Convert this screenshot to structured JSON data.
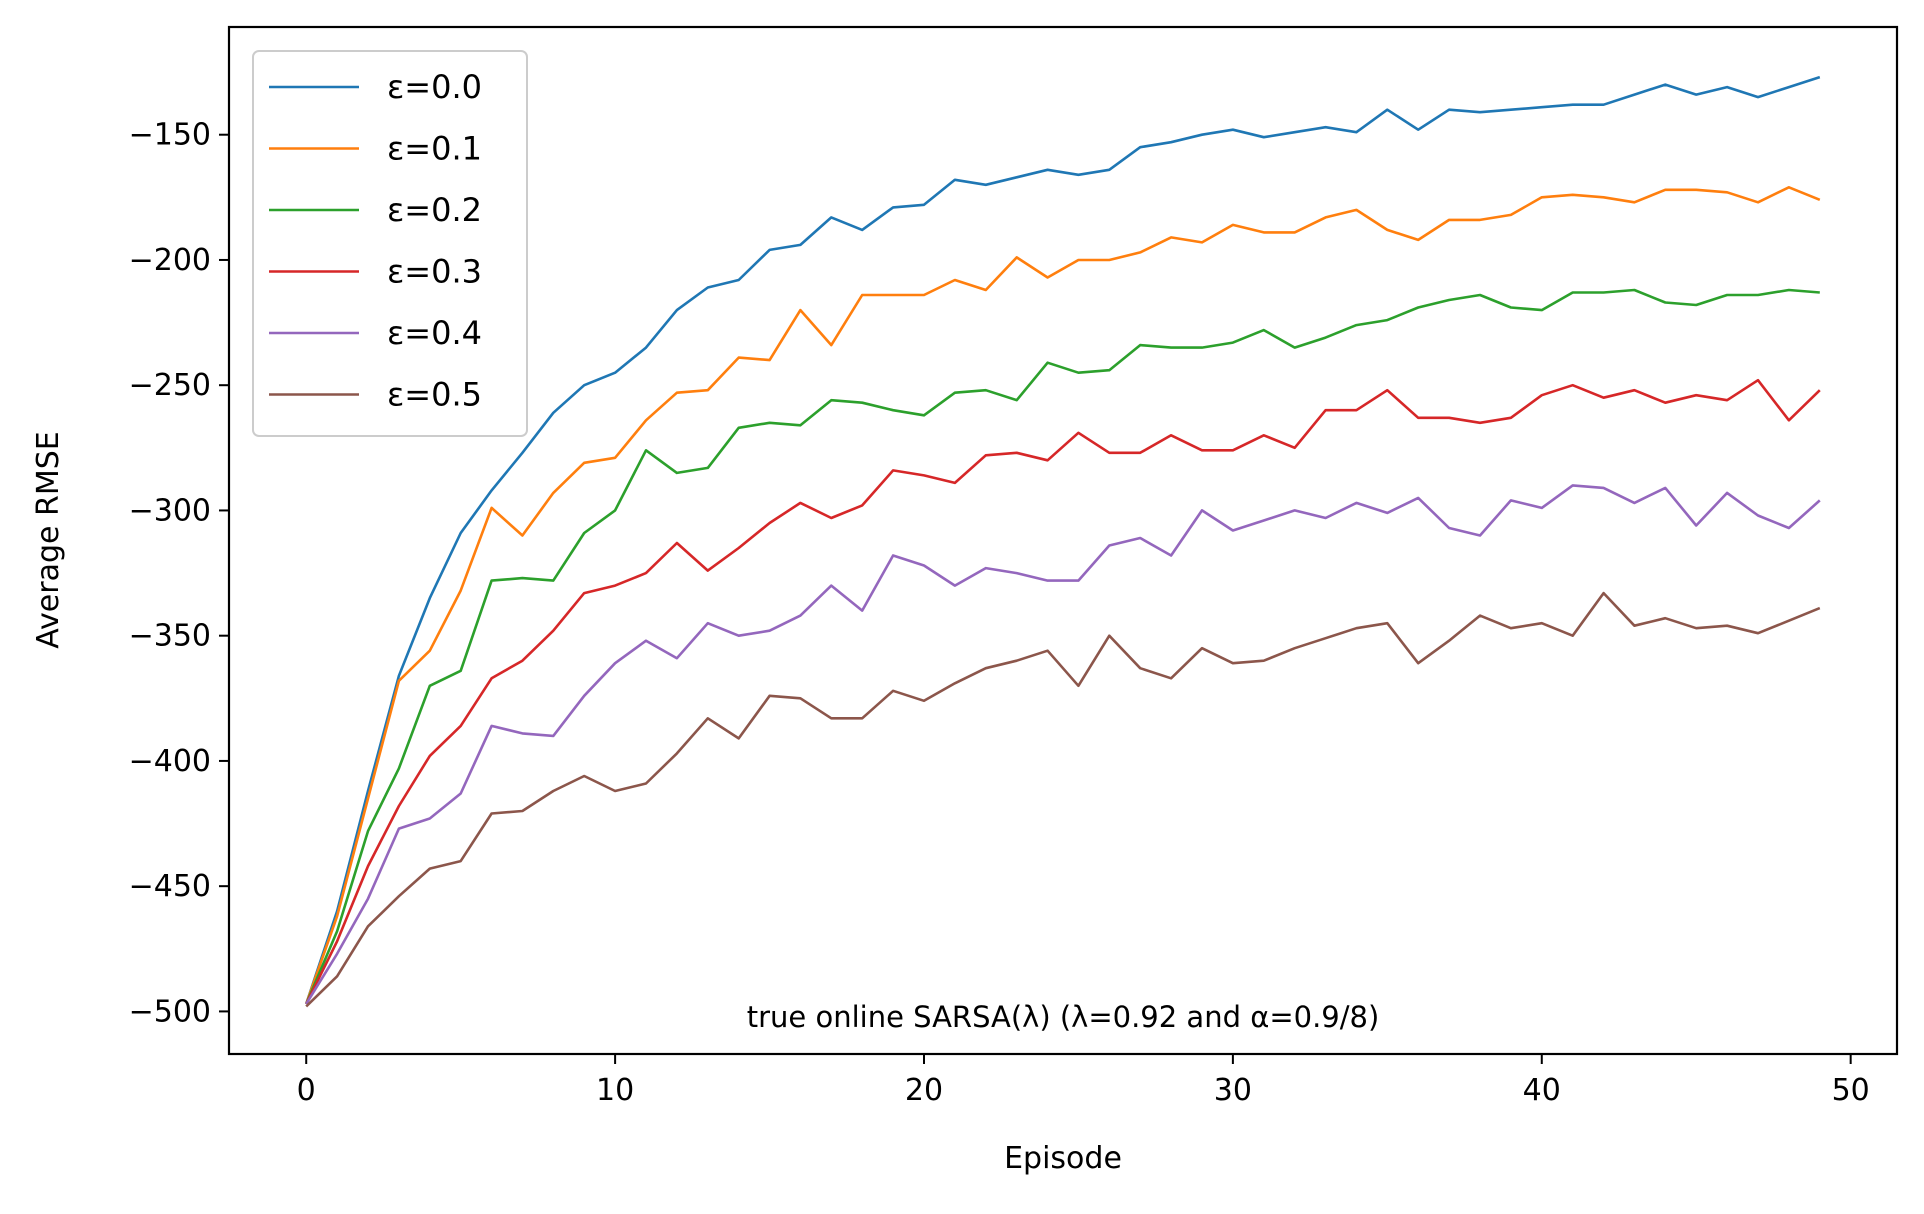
{
  "chart_data": {
    "type": "line",
    "title": "",
    "xlabel": "Episode",
    "ylabel": "Average RMSE",
    "annotation": "true online SARSA(λ) (λ=0.92 and α=0.9/8)",
    "xlim": [
      -2.5,
      51.5
    ],
    "ylim": [
      -517,
      -107
    ],
    "xticks": [
      0,
      10,
      20,
      30,
      40,
      50
    ],
    "xtick_labels": [
      "0",
      "10",
      "20",
      "30",
      "40",
      "50"
    ],
    "yticks": [
      -150,
      -200,
      -250,
      -300,
      -350,
      -400,
      -450,
      -500
    ],
    "ytick_labels": [
      "−150",
      "−200",
      "−250",
      "−300",
      "−350",
      "−400",
      "−450",
      "−500"
    ],
    "grid": false,
    "legend_position": "upper left",
    "x": [
      0,
      1,
      2,
      3,
      4,
      5,
      6,
      7,
      8,
      9,
      10,
      11,
      12,
      13,
      14,
      15,
      16,
      17,
      18,
      19,
      20,
      21,
      22,
      23,
      24,
      25,
      26,
      27,
      28,
      29,
      30,
      31,
      32,
      33,
      34,
      35,
      36,
      37,
      38,
      39,
      40,
      41,
      42,
      43,
      44,
      45,
      46,
      47,
      48,
      49
    ],
    "series": [
      {
        "name": "ε=0.0",
        "color": "#1f77b4",
        "values": [
          -497,
          -460,
          -412,
          -366,
          -335,
          -309,
          -292,
          -277,
          -261,
          -250,
          -245,
          -235,
          -220,
          -211,
          -208,
          -196,
          -194,
          -183,
          -188,
          -179,
          -178,
          -168,
          -170,
          -167,
          -164,
          -166,
          -164,
          -155,
          -153,
          -150,
          -148,
          -151,
          -149,
          -147,
          -149,
          -140,
          -148,
          -140,
          -141,
          -140,
          -139,
          -138,
          -138,
          -134,
          -130,
          -134,
          -131,
          -135,
          -131,
          -127
        ]
      },
      {
        "name": "ε=0.1",
        "color": "#ff7f0e",
        "values": [
          -497,
          -462,
          -415,
          -368,
          -356,
          -332,
          -299,
          -310,
          -293,
          -281,
          -279,
          -264,
          -253,
          -252,
          -239,
          -240,
          -220,
          -234,
          -214,
          -214,
          -214,
          -208,
          -212,
          -199,
          -207,
          -200,
          -200,
          -197,
          -191,
          -193,
          -186,
          -189,
          -189,
          -183,
          -180,
          -188,
          -192,
          -184,
          -184,
          -182,
          -175,
          -174,
          -175,
          -177,
          -172,
          -172,
          -173,
          -177,
          -171,
          -176
        ]
      },
      {
        "name": "ε=0.2",
        "color": "#2ca02c",
        "values": [
          -497,
          -468,
          -428,
          -403,
          -370,
          -364,
          -328,
          -327,
          -328,
          -309,
          -300,
          -276,
          -285,
          -283,
          -267,
          -265,
          -266,
          -256,
          -257,
          -260,
          -262,
          -253,
          -252,
          -256,
          -241,
          -245,
          -244,
          -234,
          -235,
          -235,
          -233,
          -228,
          -235,
          -231,
          -226,
          -224,
          -219,
          -216,
          -214,
          -219,
          -220,
          -213,
          -213,
          -212,
          -217,
          -218,
          -214,
          -214,
          -212,
          -213
        ]
      },
      {
        "name": "ε=0.3",
        "color": "#d62728",
        "values": [
          -497,
          -472,
          -442,
          -418,
          -398,
          -386,
          -367,
          -360,
          -348,
          -333,
          -330,
          -325,
          -313,
          -324,
          -315,
          -305,
          -297,
          -303,
          -298,
          -284,
          -286,
          -289,
          -278,
          -277,
          -280,
          -269,
          -277,
          -277,
          -270,
          -276,
          -276,
          -270,
          -275,
          -260,
          -260,
          -252,
          -263,
          -263,
          -265,
          -263,
          -254,
          -250,
          -255,
          -252,
          -257,
          -254,
          -256,
          -248,
          -264,
          -252
        ]
      },
      {
        "name": "ε=0.4",
        "color": "#9467bd",
        "values": [
          -497,
          -477,
          -455,
          -427,
          -423,
          -413,
          -386,
          -389,
          -390,
          -374,
          -361,
          -352,
          -359,
          -345,
          -350,
          -348,
          -342,
          -330,
          -340,
          -318,
          -322,
          -330,
          -323,
          -325,
          -328,
          -328,
          -314,
          -311,
          -318,
          -300,
          -308,
          -304,
          -300,
          -303,
          -297,
          -301,
          -295,
          -307,
          -310,
          -296,
          -299,
          -290,
          -291,
          -297,
          -291,
          -306,
          -293,
          -302,
          -307,
          -296
        ]
      },
      {
        "name": "ε=0.5",
        "color": "#8c564b",
        "values": [
          -498,
          -486,
          -466,
          -454,
          -443,
          -440,
          -421,
          -420,
          -412,
          -406,
          -412,
          -409,
          -397,
          -383,
          -391,
          -374,
          -375,
          -383,
          -383,
          -372,
          -376,
          -369,
          -363,
          -360,
          -356,
          -370,
          -350,
          -363,
          -367,
          -355,
          -361,
          -360,
          -355,
          -351,
          -347,
          -345,
          -361,
          -352,
          -342,
          -347,
          -345,
          -350,
          -333,
          -346,
          -343,
          -347,
          -346,
          -349,
          -344,
          -339
        ]
      }
    ]
  }
}
